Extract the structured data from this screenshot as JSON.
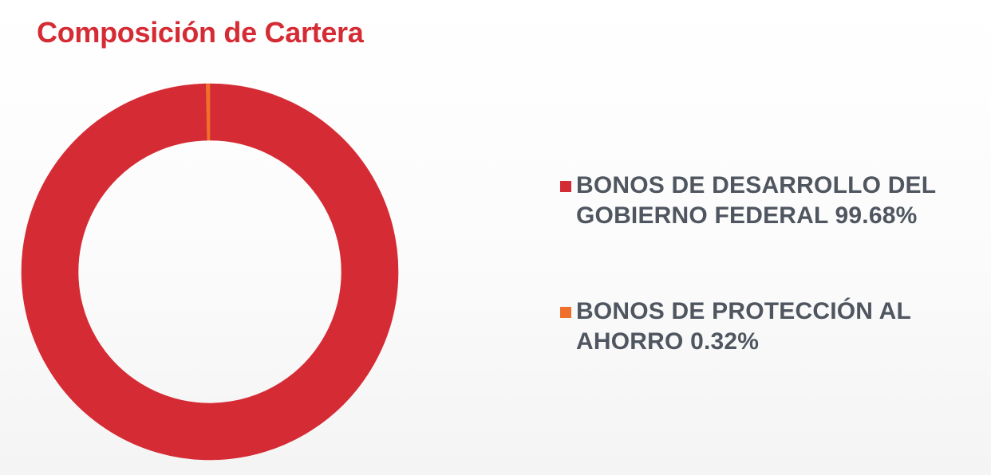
{
  "title": "Composición de Cartera",
  "colors": {
    "title": "#d52b34",
    "legend_text": "#4f5660"
  },
  "chart_data": {
    "type": "pie",
    "variant": "donut",
    "title": "Composición de Cartera",
    "legend_position": "right",
    "slices": [
      {
        "label": "BONOS DE DESARROLLO DEL GOBIERNO FEDERAL 99.68%",
        "value": 99.68,
        "color": "#d52b34"
      },
      {
        "label": "BONOS DE PROTECCIÓN AL AHORRO 0.32%",
        "value": 0.32,
        "color": "#ef6f2d"
      }
    ]
  }
}
